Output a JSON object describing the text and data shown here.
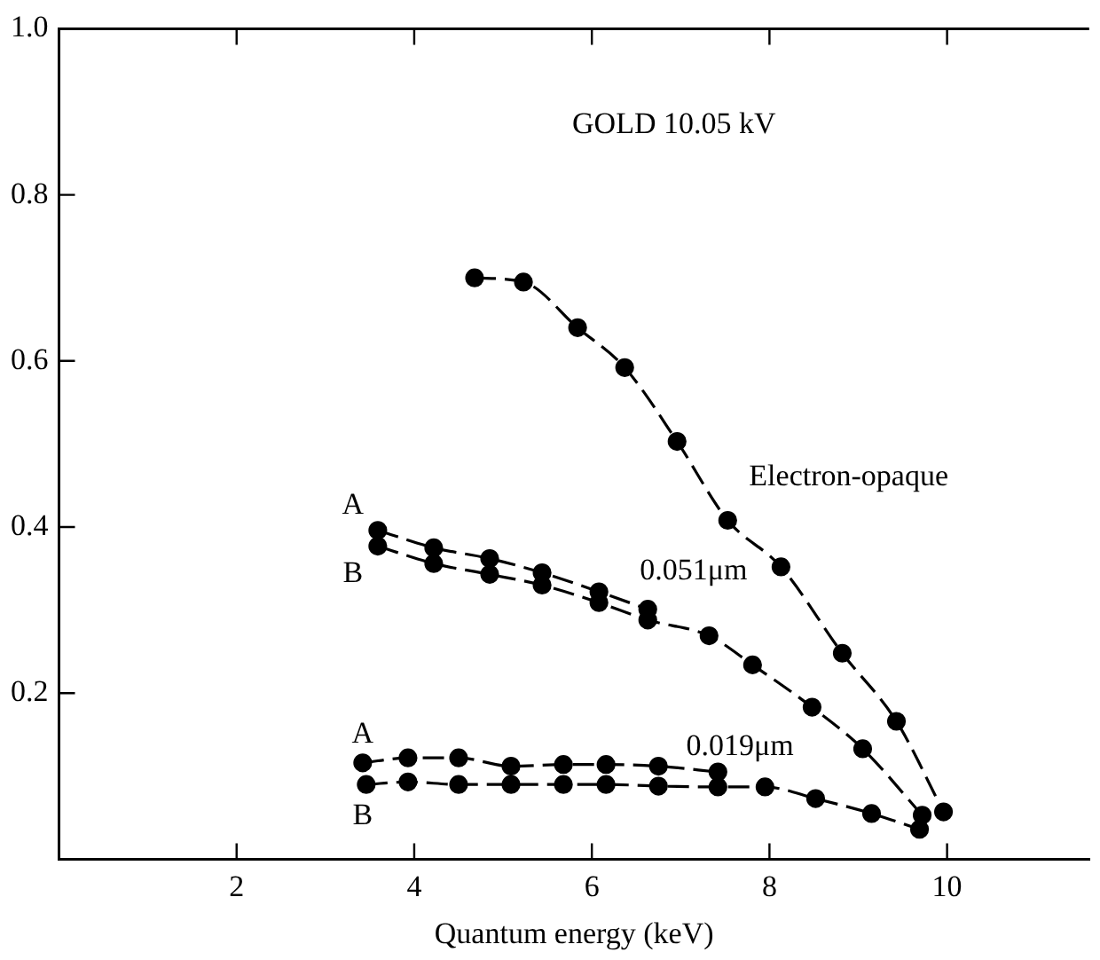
{
  "chart_data": {
    "type": "line",
    "xlabel": "Quantum energy (keV)",
    "xlim": [
      0,
      11.6
    ],
    "xticks": [
      2,
      4,
      6,
      8,
      10
    ],
    "ylim": [
      0,
      1
    ],
    "yticks": [
      0.2,
      0.4,
      0.6,
      0.8,
      {
        "value": 1,
        "label": "1.0"
      }
    ],
    "grid": false,
    "legend": false,
    "marker": "circle",
    "line_style": "dashed",
    "series": [
      {
        "name": "Electron-opaque",
        "color": "#000000",
        "x": [
          4.68,
          5.23,
          5.84,
          6.37,
          6.96,
          7.53,
          8.13,
          8.82,
          9.43,
          9.96
        ],
        "values": [
          0.7,
          0.695,
          0.64,
          0.592,
          0.503,
          0.408,
          0.352,
          0.248,
          0.166,
          0.057
        ]
      },
      {
        "name": "A",
        "color": "#000000",
        "x": [
          3.59,
          4.22,
          4.85,
          5.44,
          6.08,
          6.63
        ],
        "values": [
          0.396,
          0.375,
          0.362,
          0.345,
          0.322,
          0.301
        ]
      },
      {
        "name": "B",
        "color": "#000000",
        "x": [
          3.59,
          4.22,
          4.85,
          5.44,
          6.08,
          6.63,
          7.32,
          7.81,
          8.48,
          9.05,
          9.72
        ],
        "values": [
          0.377,
          0.356,
          0.343,
          0.33,
          0.309,
          0.288,
          0.269,
          0.234,
          0.183,
          0.133,
          0.053
        ]
      },
      {
        "name": "A",
        "color": "#000000",
        "x": [
          3.42,
          3.93,
          4.5,
          5.09,
          5.68,
          6.16,
          6.75,
          7.42
        ],
        "values": [
          0.116,
          0.122,
          0.122,
          0.112,
          0.114,
          0.114,
          0.112,
          0.105
        ]
      },
      {
        "name": "B",
        "color": "#000000",
        "x": [
          3.46,
          3.93,
          4.5,
          5.09,
          5.68,
          6.16,
          6.75,
          7.42,
          7.95,
          8.52,
          9.15,
          9.69
        ],
        "values": [
          0.09,
          0.093,
          0.09,
          0.09,
          0.09,
          0.09,
          0.088,
          0.087,
          0.087,
          0.073,
          0.055,
          0.036
        ]
      }
    ],
    "annotations": [
      "GOLD 10.05 kV",
      "0.051μm",
      "0.019μm"
    ]
  }
}
